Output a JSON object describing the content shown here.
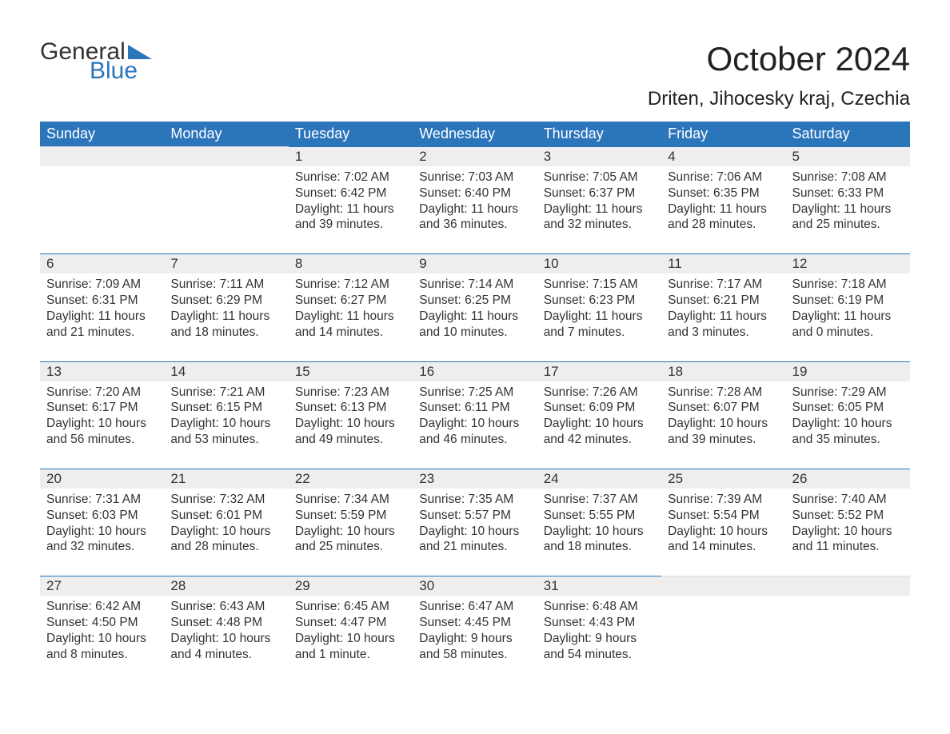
{
  "brand": {
    "part1": "General",
    "part2": "Blue",
    "text_color": "#333333",
    "accent_color": "#2b75bb"
  },
  "title": "October 2024",
  "location": "Driten, Jihocesky kraj, Czechia",
  "colors": {
    "header_bg": "#2b75bb",
    "header_text": "#ffffff",
    "daynum_bg": "#eeeeee",
    "row_border": "#2b75bb",
    "body_text": "#333333",
    "page_bg": "#ffffff"
  },
  "fonts": {
    "title_size_pt": 32,
    "location_size_pt": 18,
    "header_size_pt": 14,
    "cell_size_pt": 12
  },
  "day_headers": [
    "Sunday",
    "Monday",
    "Tuesday",
    "Wednesday",
    "Thursday",
    "Friday",
    "Saturday"
  ],
  "weeks": [
    [
      null,
      null,
      {
        "n": "1",
        "sunrise": "Sunrise: 7:02 AM",
        "sunset": "Sunset: 6:42 PM",
        "dl1": "Daylight: 11 hours",
        "dl2": "and 39 minutes."
      },
      {
        "n": "2",
        "sunrise": "Sunrise: 7:03 AM",
        "sunset": "Sunset: 6:40 PM",
        "dl1": "Daylight: 11 hours",
        "dl2": "and 36 minutes."
      },
      {
        "n": "3",
        "sunrise": "Sunrise: 7:05 AM",
        "sunset": "Sunset: 6:37 PM",
        "dl1": "Daylight: 11 hours",
        "dl2": "and 32 minutes."
      },
      {
        "n": "4",
        "sunrise": "Sunrise: 7:06 AM",
        "sunset": "Sunset: 6:35 PM",
        "dl1": "Daylight: 11 hours",
        "dl2": "and 28 minutes."
      },
      {
        "n": "5",
        "sunrise": "Sunrise: 7:08 AM",
        "sunset": "Sunset: 6:33 PM",
        "dl1": "Daylight: 11 hours",
        "dl2": "and 25 minutes."
      }
    ],
    [
      {
        "n": "6",
        "sunrise": "Sunrise: 7:09 AM",
        "sunset": "Sunset: 6:31 PM",
        "dl1": "Daylight: 11 hours",
        "dl2": "and 21 minutes."
      },
      {
        "n": "7",
        "sunrise": "Sunrise: 7:11 AM",
        "sunset": "Sunset: 6:29 PM",
        "dl1": "Daylight: 11 hours",
        "dl2": "and 18 minutes."
      },
      {
        "n": "8",
        "sunrise": "Sunrise: 7:12 AM",
        "sunset": "Sunset: 6:27 PM",
        "dl1": "Daylight: 11 hours",
        "dl2": "and 14 minutes."
      },
      {
        "n": "9",
        "sunrise": "Sunrise: 7:14 AM",
        "sunset": "Sunset: 6:25 PM",
        "dl1": "Daylight: 11 hours",
        "dl2": "and 10 minutes."
      },
      {
        "n": "10",
        "sunrise": "Sunrise: 7:15 AM",
        "sunset": "Sunset: 6:23 PM",
        "dl1": "Daylight: 11 hours",
        "dl2": "and 7 minutes."
      },
      {
        "n": "11",
        "sunrise": "Sunrise: 7:17 AM",
        "sunset": "Sunset: 6:21 PM",
        "dl1": "Daylight: 11 hours",
        "dl2": "and 3 minutes."
      },
      {
        "n": "12",
        "sunrise": "Sunrise: 7:18 AM",
        "sunset": "Sunset: 6:19 PM",
        "dl1": "Daylight: 11 hours",
        "dl2": "and 0 minutes."
      }
    ],
    [
      {
        "n": "13",
        "sunrise": "Sunrise: 7:20 AM",
        "sunset": "Sunset: 6:17 PM",
        "dl1": "Daylight: 10 hours",
        "dl2": "and 56 minutes."
      },
      {
        "n": "14",
        "sunrise": "Sunrise: 7:21 AM",
        "sunset": "Sunset: 6:15 PM",
        "dl1": "Daylight: 10 hours",
        "dl2": "and 53 minutes."
      },
      {
        "n": "15",
        "sunrise": "Sunrise: 7:23 AM",
        "sunset": "Sunset: 6:13 PM",
        "dl1": "Daylight: 10 hours",
        "dl2": "and 49 minutes."
      },
      {
        "n": "16",
        "sunrise": "Sunrise: 7:25 AM",
        "sunset": "Sunset: 6:11 PM",
        "dl1": "Daylight: 10 hours",
        "dl2": "and 46 minutes."
      },
      {
        "n": "17",
        "sunrise": "Sunrise: 7:26 AM",
        "sunset": "Sunset: 6:09 PM",
        "dl1": "Daylight: 10 hours",
        "dl2": "and 42 minutes."
      },
      {
        "n": "18",
        "sunrise": "Sunrise: 7:28 AM",
        "sunset": "Sunset: 6:07 PM",
        "dl1": "Daylight: 10 hours",
        "dl2": "and 39 minutes."
      },
      {
        "n": "19",
        "sunrise": "Sunrise: 7:29 AM",
        "sunset": "Sunset: 6:05 PM",
        "dl1": "Daylight: 10 hours",
        "dl2": "and 35 minutes."
      }
    ],
    [
      {
        "n": "20",
        "sunrise": "Sunrise: 7:31 AM",
        "sunset": "Sunset: 6:03 PM",
        "dl1": "Daylight: 10 hours",
        "dl2": "and 32 minutes."
      },
      {
        "n": "21",
        "sunrise": "Sunrise: 7:32 AM",
        "sunset": "Sunset: 6:01 PM",
        "dl1": "Daylight: 10 hours",
        "dl2": "and 28 minutes."
      },
      {
        "n": "22",
        "sunrise": "Sunrise: 7:34 AM",
        "sunset": "Sunset: 5:59 PM",
        "dl1": "Daylight: 10 hours",
        "dl2": "and 25 minutes."
      },
      {
        "n": "23",
        "sunrise": "Sunrise: 7:35 AM",
        "sunset": "Sunset: 5:57 PM",
        "dl1": "Daylight: 10 hours",
        "dl2": "and 21 minutes."
      },
      {
        "n": "24",
        "sunrise": "Sunrise: 7:37 AM",
        "sunset": "Sunset: 5:55 PM",
        "dl1": "Daylight: 10 hours",
        "dl2": "and 18 minutes."
      },
      {
        "n": "25",
        "sunrise": "Sunrise: 7:39 AM",
        "sunset": "Sunset: 5:54 PM",
        "dl1": "Daylight: 10 hours",
        "dl2": "and 14 minutes."
      },
      {
        "n": "26",
        "sunrise": "Sunrise: 7:40 AM",
        "sunset": "Sunset: 5:52 PM",
        "dl1": "Daylight: 10 hours",
        "dl2": "and 11 minutes."
      }
    ],
    [
      {
        "n": "27",
        "sunrise": "Sunrise: 6:42 AM",
        "sunset": "Sunset: 4:50 PM",
        "dl1": "Daylight: 10 hours",
        "dl2": "and 8 minutes."
      },
      {
        "n": "28",
        "sunrise": "Sunrise: 6:43 AM",
        "sunset": "Sunset: 4:48 PM",
        "dl1": "Daylight: 10 hours",
        "dl2": "and 4 minutes."
      },
      {
        "n": "29",
        "sunrise": "Sunrise: 6:45 AM",
        "sunset": "Sunset: 4:47 PM",
        "dl1": "Daylight: 10 hours",
        "dl2": "and 1 minute."
      },
      {
        "n": "30",
        "sunrise": "Sunrise: 6:47 AM",
        "sunset": "Sunset: 4:45 PM",
        "dl1": "Daylight: 9 hours",
        "dl2": "and 58 minutes."
      },
      {
        "n": "31",
        "sunrise": "Sunrise: 6:48 AM",
        "sunset": "Sunset: 4:43 PM",
        "dl1": "Daylight: 9 hours",
        "dl2": "and 54 minutes."
      },
      null,
      null
    ]
  ]
}
